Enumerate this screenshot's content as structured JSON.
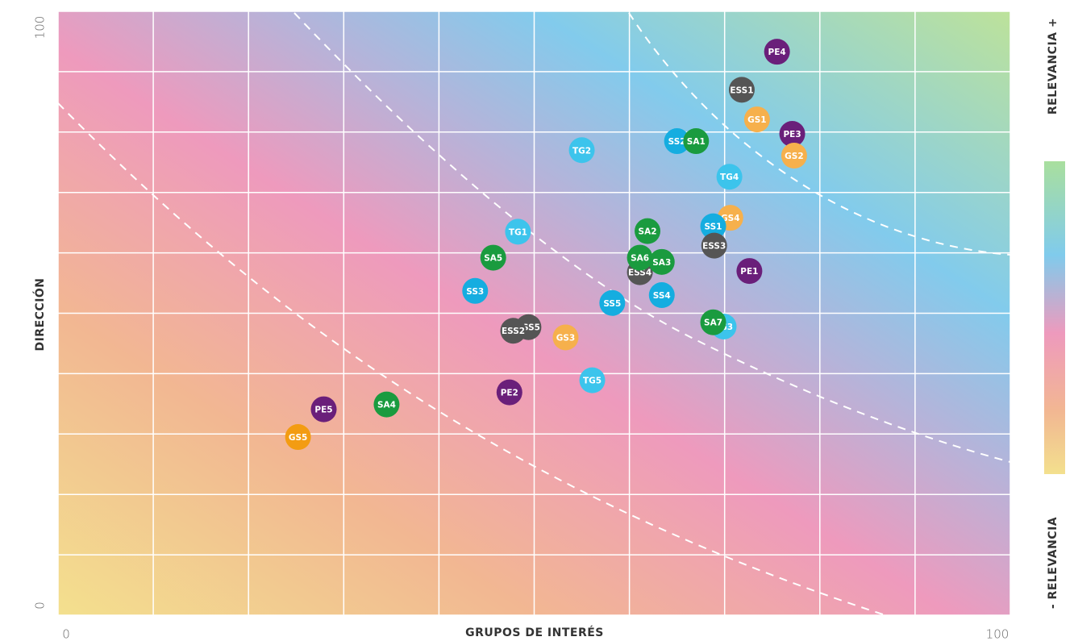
{
  "chart_data": {
    "type": "scatter",
    "xlabel": "GRUPOS DE INTERÉS",
    "ylabel": "DIRECCIÓN",
    "scale_top": "RELEVANCIA +",
    "scale_bottom": "- RELEVANCIA",
    "xlim": [
      0,
      100
    ],
    "ylim": [
      0,
      100
    ],
    "xticks": [
      0,
      100
    ],
    "yticks": [
      0,
      100
    ],
    "grid": true,
    "grid_x": [
      0,
      10,
      20,
      30,
      40,
      50,
      60,
      70,
      80,
      90,
      100
    ],
    "grid_y": [
      0,
      10,
      20,
      30,
      40,
      50,
      60,
      70,
      80,
      90,
      100
    ],
    "points": [
      {
        "label": "PE4",
        "x": 75.5,
        "y": 93.3,
        "color": "#6a1f7a"
      },
      {
        "label": "ESS1",
        "x": 71.8,
        "y": 87.0,
        "color": "#555555"
      },
      {
        "label": "GS1",
        "x": 73.4,
        "y": 82.1,
        "color": "#f6b04c"
      },
      {
        "label": "PE3",
        "x": 77.1,
        "y": 79.7,
        "color": "#6a1f7a"
      },
      {
        "label": "GS2",
        "x": 77.3,
        "y": 76.1,
        "color": "#f6b04c"
      },
      {
        "label": "SS2",
        "x": 65.0,
        "y": 78.5,
        "color": "#15ade0"
      },
      {
        "label": "SA1",
        "x": 67.0,
        "y": 78.5,
        "color": "#1a9b3f"
      },
      {
        "label": "TG2",
        "x": 55.0,
        "y": 77.0,
        "color": "#3cc4ec"
      },
      {
        "label": "TG4",
        "x": 70.5,
        "y": 72.6,
        "color": "#3cc4ec"
      },
      {
        "label": "GS4",
        "x": 70.6,
        "y": 65.8,
        "color": "#f6b04c"
      },
      {
        "label": "SS1",
        "x": 68.8,
        "y": 64.4,
        "color": "#15ade0"
      },
      {
        "label": "ESS3",
        "x": 68.9,
        "y": 61.2,
        "color": "#555555"
      },
      {
        "label": "SA2",
        "x": 61.9,
        "y": 63.6,
        "color": "#1a9b3f"
      },
      {
        "label": "TG1",
        "x": 48.3,
        "y": 63.5,
        "color": "#3cc4ec"
      },
      {
        "label": "SA5",
        "x": 45.7,
        "y": 59.2,
        "color": "#1a9b3f"
      },
      {
        "label": "ESS4",
        "x": 61.1,
        "y": 56.8,
        "color": "#555555"
      },
      {
        "label": "SA6",
        "x": 61.1,
        "y": 59.2,
        "color": "#1a9b3f"
      },
      {
        "label": "SA3",
        "x": 63.4,
        "y": 58.5,
        "color": "#1a9b3f"
      },
      {
        "label": "PE1",
        "x": 72.6,
        "y": 57.0,
        "color": "#6a1f7a"
      },
      {
        "label": "SS3",
        "x": 43.8,
        "y": 53.7,
        "color": "#15ade0"
      },
      {
        "label": "SS4",
        "x": 63.4,
        "y": 53.0,
        "color": "#15ade0"
      },
      {
        "label": "SS5",
        "x": 58.2,
        "y": 51.7,
        "color": "#15ade0"
      },
      {
        "label": "TG3",
        "x": 69.9,
        "y": 47.8,
        "color": "#3cc4ec"
      },
      {
        "label": "SA7",
        "x": 68.8,
        "y": 48.5,
        "color": "#1a9b3f"
      },
      {
        "label": "ESS5",
        "x": 49.4,
        "y": 47.7,
        "color": "#555555"
      },
      {
        "label": "ESS2",
        "x": 47.8,
        "y": 47.1,
        "color": "#555555"
      },
      {
        "label": "GS3",
        "x": 53.3,
        "y": 46.0,
        "color": "#f6b04c"
      },
      {
        "label": "TG5",
        "x": 56.1,
        "y": 38.9,
        "color": "#3cc4ec"
      },
      {
        "label": "PE2",
        "x": 47.4,
        "y": 36.9,
        "color": "#6a1f7a"
      },
      {
        "label": "SA4",
        "x": 34.5,
        "y": 34.9,
        "color": "#1a9b3f"
      },
      {
        "label": "PE5",
        "x": 27.9,
        "y": 34.1,
        "color": "#6a1f7a"
      },
      {
        "label": "GS5",
        "x": 25.2,
        "y": 29.5,
        "color": "#f39c12"
      }
    ]
  }
}
